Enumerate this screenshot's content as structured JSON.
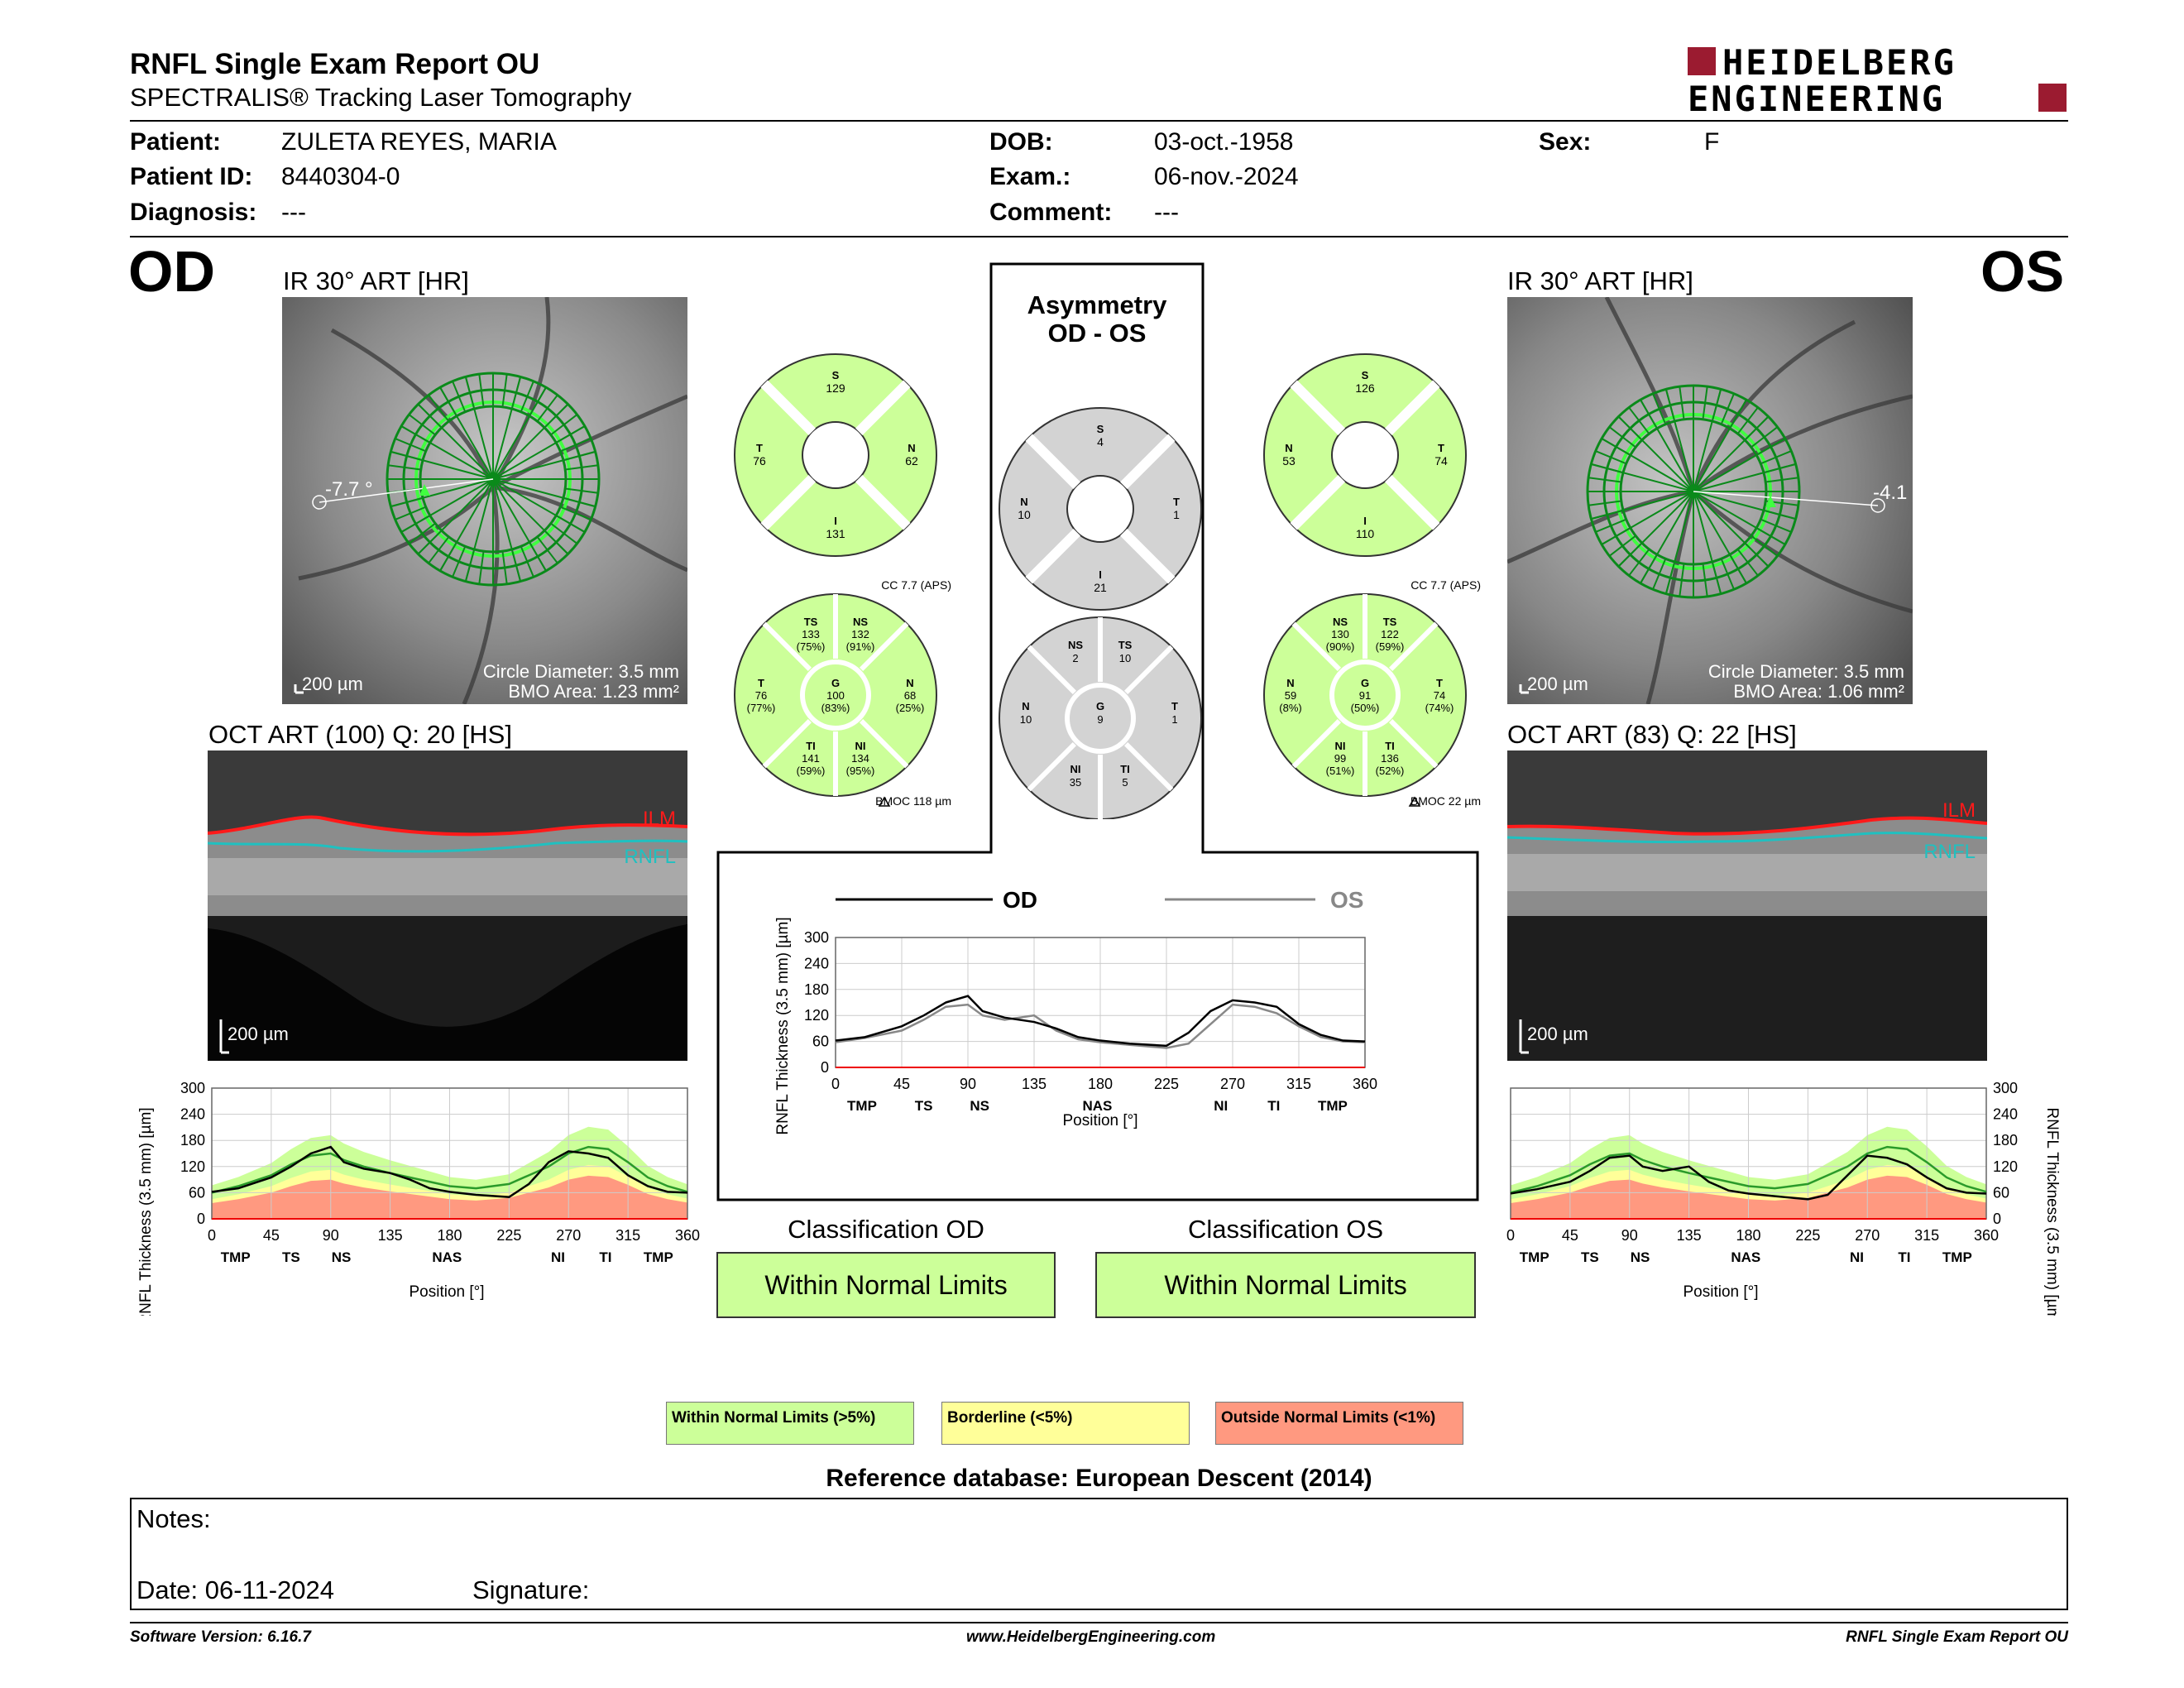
{
  "report": {
    "title": "RNFL Single Exam Report OU",
    "subtitle": "SPECTRALIS® Tracking Laser Tomography",
    "logo_line1": "HEIDELBERG",
    "logo_line2": "ENGINEERING"
  },
  "patient": {
    "name_label": "Patient:",
    "name": "ZULETA REYES, MARIA",
    "id_label": "Patient ID:",
    "id": "8440304-0",
    "diagnosis_label": "Diagnosis:",
    "diagnosis": "---",
    "dob_label": "DOB:",
    "dob": "03-oct.-1958",
    "exam_label": "Exam.:",
    "exam": "06-nov.-2024",
    "comment_label": "Comment:",
    "comment": "---",
    "sex_label": "Sex:",
    "sex": "F"
  },
  "od": {
    "eye": "OD",
    "ir_title": "IR 30° ART [HR]",
    "angle": "-7.7 °",
    "scale": "200 µm",
    "circle_diameter": "Circle Diameter: 3.5 mm",
    "bmo_area": "BMO Area: 1.23 mm²",
    "oct_title": "OCT ART (100) Q: 20 [HS]",
    "ilm": "ILM",
    "rnfl": "RNFL",
    "oct_scale": "200 µm",
    "classification_title": "Classification OD",
    "classification": "Within Normal Limits"
  },
  "os": {
    "eye": "OS",
    "ir_title": "IR 30° ART [HR]",
    "angle": "-4.1",
    "scale": "200 µm",
    "circle_diameter": "Circle Diameter: 3.5 mm",
    "bmo_area": "BMO Area: 1.06 mm²",
    "oct_title": "OCT ART (83) Q: 22 [HS]",
    "ilm": "ILM",
    "rnfl": "RNFL",
    "oct_scale": "200 µm",
    "classification_title": "Classification OS",
    "classification": "Within Normal Limits"
  },
  "asymmetry": {
    "title1": "Asymmetry",
    "title2": "OD - OS"
  },
  "sectors": {
    "od4": {
      "S": "129",
      "T": "76",
      "N": "62",
      "I": "131"
    },
    "os4": {
      "S": "126",
      "N": "53",
      "T": "74",
      "I": "110"
    },
    "asym4": {
      "S": "4",
      "N": "10",
      "T": "1",
      "I": "21"
    },
    "od6": {
      "cc": "CC 7.7 (APS)",
      "bmoc": "BMOC 118 µm",
      "TS": [
        "TS",
        "133",
        "(75%)"
      ],
      "NS": [
        "NS",
        "132",
        "(91%)"
      ],
      "T": [
        "T",
        "76",
        "(77%)"
      ],
      "G": [
        "G",
        "100",
        "(83%)"
      ],
      "N": [
        "N",
        "68",
        "(25%)"
      ],
      "TI": [
        "TI",
        "141",
        "(59%)"
      ],
      "NI": [
        "NI",
        "134",
        "(95%)"
      ]
    },
    "os6": {
      "cc": "CC 7.7 (APS)",
      "bmoc": "BMOC 22 µm",
      "NS": [
        "NS",
        "130",
        "(90%)"
      ],
      "TS": [
        "TS",
        "122",
        "(59%)"
      ],
      "N": [
        "N",
        "59",
        "(8%)"
      ],
      "G": [
        "G",
        "91",
        "(50%)"
      ],
      "T": [
        "T",
        "74",
        "(74%)"
      ],
      "NI": [
        "NI",
        "99",
        "(51%)"
      ],
      "TI": [
        "TI",
        "136",
        "(52%)"
      ]
    },
    "asym6": {
      "NS": "2",
      "TS": "10",
      "N": "10",
      "G": "9",
      "T": "1",
      "NI": "35",
      "TI": "5"
    }
  },
  "plot_labels": {
    "ylabel": "RNFL Thickness (3.5 mm) [µm]",
    "xlabel": "Position [°]",
    "yticks": [
      "300",
      "240",
      "180",
      "120",
      "60",
      "0"
    ],
    "xticks": [
      "0",
      "45",
      "90",
      "135",
      "180",
      "225",
      "270",
      "315",
      "360"
    ],
    "sectors": [
      "TMP",
      "TS",
      "NS",
      "NAS",
      "NI",
      "TI",
      "TMP"
    ],
    "legend_od": "OD",
    "legend_os": "OS"
  },
  "chart_data": [
    {
      "type": "line",
      "title": "",
      "xlabel": "Position [°]",
      "ylabel": "RNFL Thickness (3.5 mm) [µm]",
      "xlim": [
        0,
        360
      ],
      "ylim": [
        0,
        300
      ],
      "x": [
        0,
        20,
        45,
        60,
        75,
        90,
        100,
        115,
        135,
        150,
        165,
        180,
        200,
        225,
        240,
        255,
        270,
        285,
        300,
        315,
        330,
        345,
        360
      ],
      "series": [
        {
          "name": "OD",
          "values": [
            62,
            70,
            95,
            120,
            150,
            165,
            130,
            115,
            105,
            90,
            70,
            62,
            55,
            50,
            80,
            130,
            155,
            150,
            140,
            100,
            75,
            62,
            60
          ]
        },
        {
          "name": "OS",
          "values": [
            58,
            68,
            85,
            110,
            140,
            145,
            120,
            110,
            120,
            85,
            65,
            58,
            52,
            45,
            55,
            100,
            145,
            140,
            125,
            95,
            70,
            60,
            58
          ]
        }
      ]
    },
    {
      "type": "line",
      "title": "",
      "xlabel": "Position [°]",
      "ylabel": "RNFL Thickness (3.5 mm) [µm]",
      "xlim": [
        0,
        360
      ],
      "ylim": [
        0,
        300
      ],
      "x": [
        0,
        20,
        45,
        60,
        75,
        90,
        100,
        115,
        135,
        150,
        165,
        180,
        200,
        225,
        240,
        255,
        270,
        285,
        300,
        315,
        330,
        345,
        360
      ],
      "series": [
        {
          "name": "OD",
          "values": [
            62,
            70,
            95,
            120,
            150,
            165,
            130,
            115,
            105,
            90,
            70,
            62,
            55,
            50,
            80,
            130,
            155,
            150,
            140,
            100,
            75,
            62,
            60
          ]
        },
        {
          "name": "Normal mean",
          "values": [
            60,
            75,
            100,
            125,
            145,
            150,
            135,
            120,
            105,
            95,
            85,
            75,
            70,
            80,
            100,
            120,
            150,
            165,
            160,
            130,
            95,
            75,
            62
          ]
        }
      ]
    },
    {
      "type": "line",
      "title": "",
      "xlabel": "Position [°]",
      "ylabel": "RNFL Thickness (3.5 mm) [µm]",
      "xlim": [
        0,
        360
      ],
      "ylim": [
        0,
        300
      ],
      "x": [
        0,
        20,
        45,
        60,
        75,
        90,
        100,
        115,
        135,
        150,
        165,
        180,
        200,
        225,
        240,
        255,
        270,
        285,
        300,
        315,
        330,
        345,
        360
      ],
      "series": [
        {
          "name": "OS",
          "values": [
            58,
            68,
            85,
            110,
            140,
            145,
            120,
            110,
            120,
            85,
            65,
            58,
            52,
            45,
            55,
            100,
            145,
            140,
            125,
            95,
            70,
            60,
            58
          ]
        },
        {
          "name": "Normal mean",
          "values": [
            60,
            75,
            100,
            125,
            145,
            150,
            135,
            120,
            105,
            95,
            85,
            75,
            70,
            80,
            100,
            120,
            150,
            165,
            160,
            130,
            95,
            75,
            62
          ]
        }
      ]
    }
  ],
  "legend": {
    "wnl": "Within Normal Limits (>5%)",
    "wnl_color": "#ccff99",
    "bl": "Borderline (<5%)",
    "bl_color": "#ffff99",
    "onl": "Outside Normal Limits (<1%)",
    "onl_color": "#ff9980"
  },
  "reference_db": "Reference database: European Descent (2014)",
  "notes": {
    "label": "Notes:",
    "date": "Date: 06-11-2024",
    "signature": "Signature:"
  },
  "footer": {
    "version": "Software Version: 6.16.7",
    "url": "www.HeidelbergEngineering.com",
    "report": "RNFL Single Exam Report OU"
  }
}
